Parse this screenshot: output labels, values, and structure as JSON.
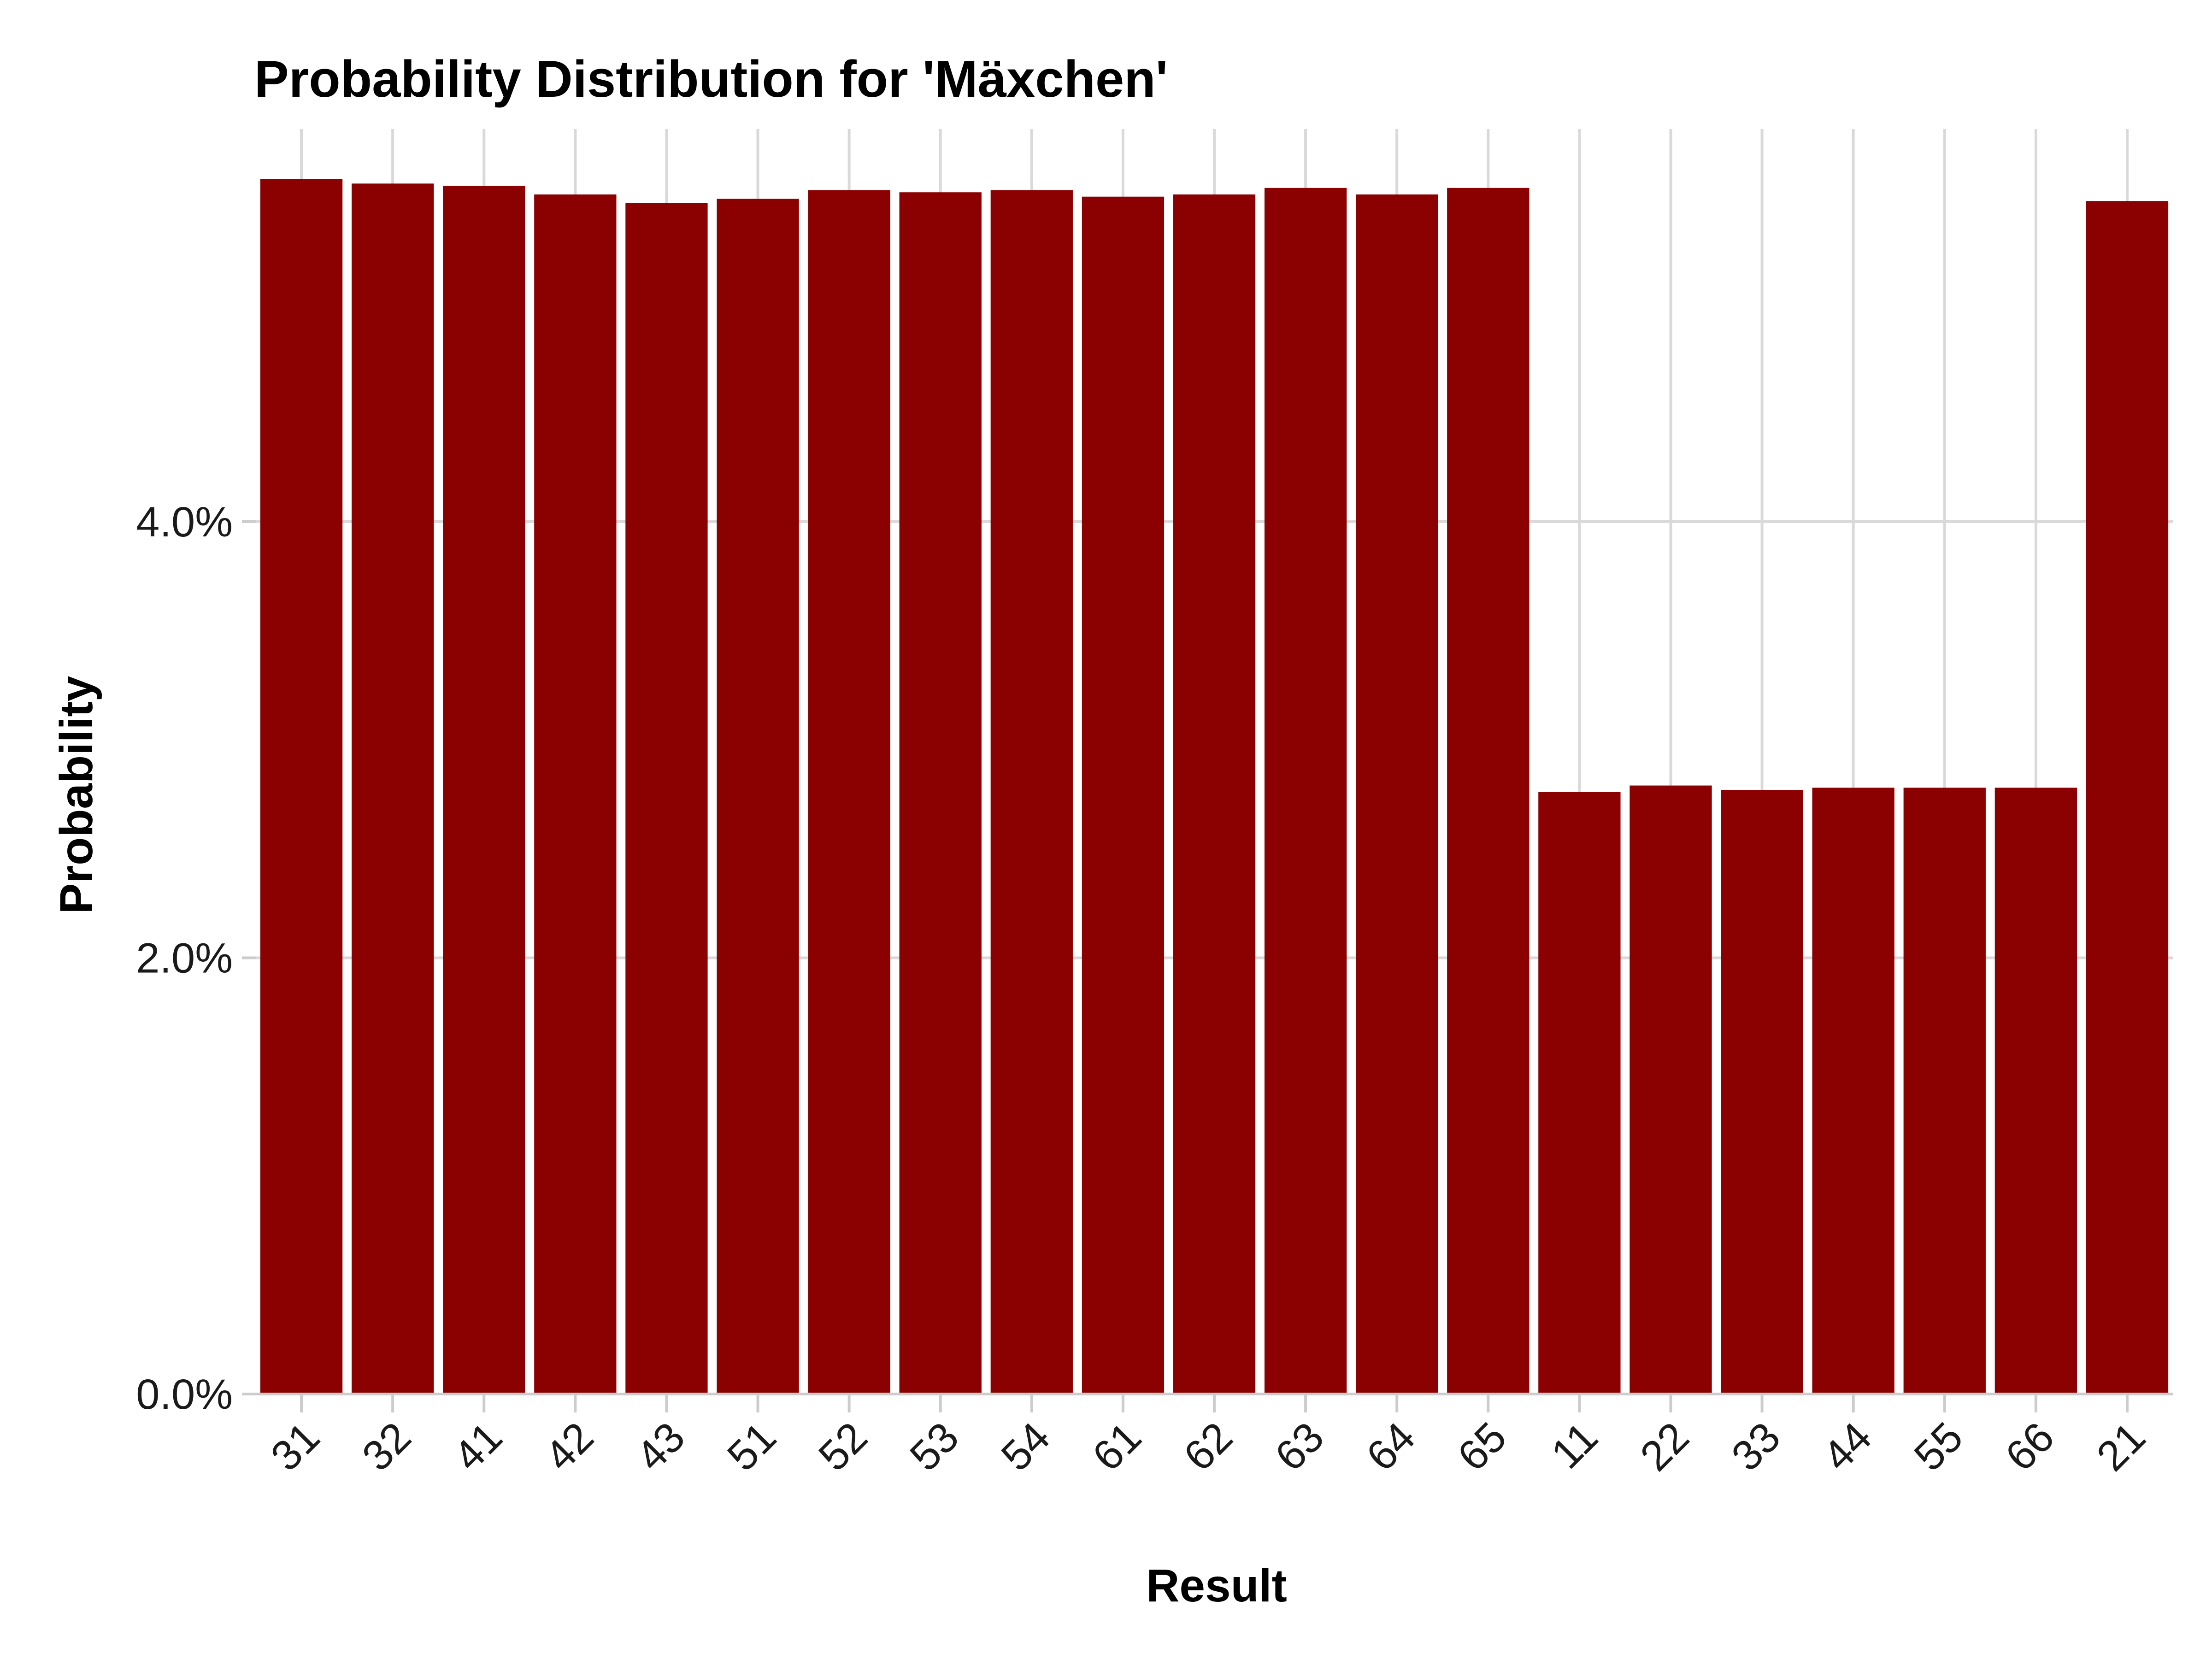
{
  "chart_data": {
    "type": "bar",
    "title": "Probability Distribution for 'Mäxchen'",
    "xlabel": "Result",
    "ylabel": "Probability",
    "categories": [
      "31",
      "32",
      "41",
      "42",
      "43",
      "51",
      "52",
      "53",
      "54",
      "61",
      "62",
      "63",
      "64",
      "65",
      "11",
      "22",
      "33",
      "44",
      "55",
      "66",
      "21"
    ],
    "values": [
      5.57,
      5.55,
      5.54,
      5.5,
      5.46,
      5.48,
      5.52,
      5.51,
      5.52,
      5.49,
      5.5,
      5.53,
      5.5,
      5.53,
      2.76,
      2.79,
      2.77,
      2.78,
      2.78,
      2.78,
      5.47
    ],
    "value_unit": "%",
    "ylim": [
      0,
      5.8
    ],
    "yticks": [
      0,
      2,
      4
    ],
    "ytick_labels": [
      "0.0%",
      "2.0%",
      "4.0%"
    ],
    "bar_color": "#8b0000",
    "grid": true,
    "legend": "none"
  }
}
